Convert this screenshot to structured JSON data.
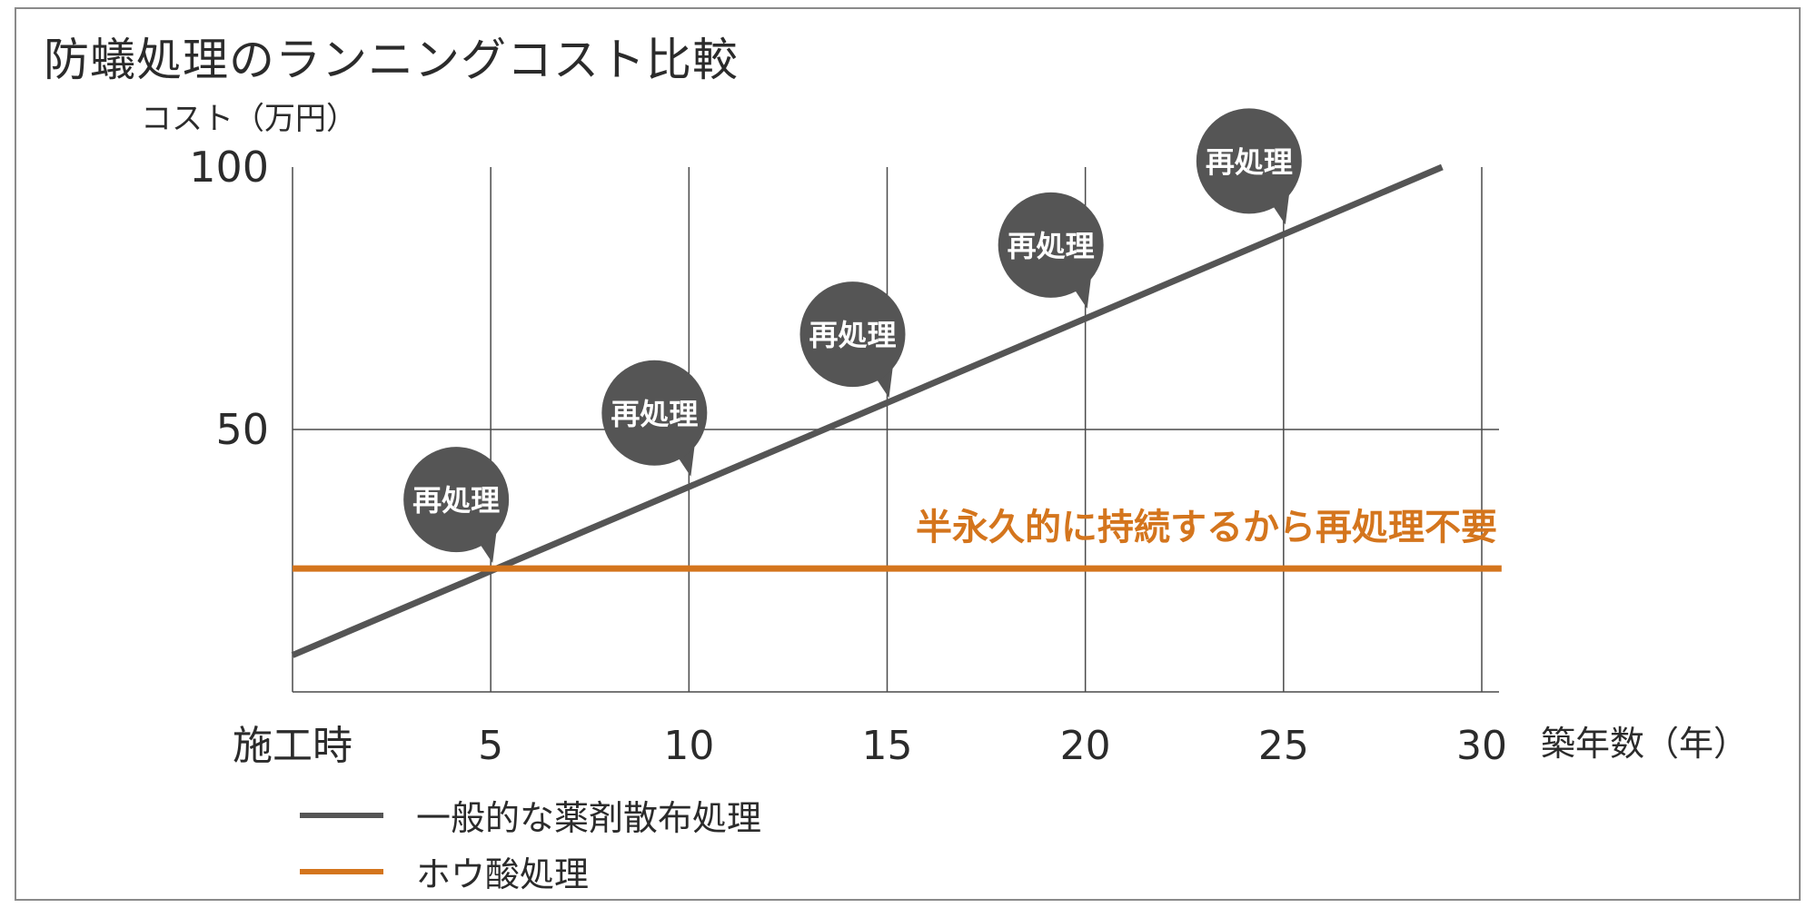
{
  "chart_data": {
    "type": "line",
    "title": "防蟻処理のランニングコスト比較",
    "ylabel": "コスト（万円）",
    "xlabel": "築年数（年）",
    "ylim": [
      0,
      100
    ],
    "xlim": [
      0,
      30
    ],
    "x_ticks": [
      {
        "value": 0,
        "label": "施工時"
      },
      {
        "value": 5,
        "label": "5"
      },
      {
        "value": 10,
        "label": "10"
      },
      {
        "value": 15,
        "label": "15"
      },
      {
        "value": 20,
        "label": "20"
      },
      {
        "value": 25,
        "label": "25"
      },
      {
        "value": 30,
        "label": "30"
      }
    ],
    "y_ticks": [
      {
        "value": 50,
        "label": "50"
      },
      {
        "value": 100,
        "label": "100"
      }
    ],
    "series": [
      {
        "name": "一般的な薬剤散布処理",
        "color": "#555555",
        "x": [
          0,
          29
        ],
        "y": [
          7,
          100
        ]
      },
      {
        "name": "ホウ酸処理",
        "color": "#d4751d",
        "x": [
          0,
          30.5
        ],
        "y": [
          23.5,
          23.5
        ]
      }
    ],
    "annotations": [
      {
        "text": "再処理",
        "x": 5,
        "y": 23.5
      },
      {
        "text": "再処理",
        "x": 10,
        "y": 40
      },
      {
        "text": "再処理",
        "x": 15,
        "y": 55
      },
      {
        "text": "再処理",
        "x": 20,
        "y": 72
      },
      {
        "text": "再処理",
        "x": 25,
        "y": 88
      }
    ],
    "callout": {
      "text": "半永久的に持続するから再処理不要",
      "color": "#d4751d"
    },
    "grid": true
  }
}
